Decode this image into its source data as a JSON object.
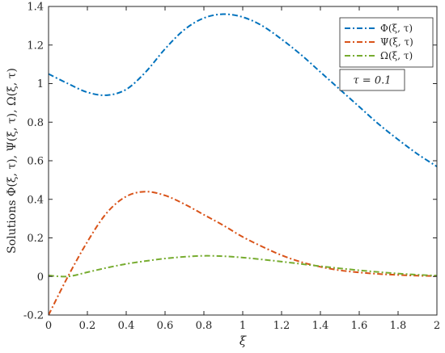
{
  "chart_data": {
    "type": "line",
    "title": "",
    "xlabel": "ξ",
    "ylabel": "Solutions Φ(ξ, τ), Ψ(ξ, τ), Ω(ξ, τ)",
    "xlim": [
      0,
      2
    ],
    "ylim": [
      -0.2,
      1.4
    ],
    "xticks": [
      0,
      0.2,
      0.4,
      0.6,
      0.8,
      1,
      1.2,
      1.4,
      1.6,
      1.8,
      2
    ],
    "xtick_labels": [
      "0",
      "0.2",
      "0.4",
      "0.6",
      "0.8",
      "1",
      "1.2",
      "1.4",
      "1.6",
      "1.8",
      "2"
    ],
    "yticks": [
      -0.2,
      0,
      0.2,
      0.4,
      0.6,
      0.8,
      1,
      1.2,
      1.4
    ],
    "ytick_labels": [
      "-0.2",
      "0",
      "0.2",
      "0.4",
      "0.6",
      "0.8",
      "1",
      "1.2",
      "1.4"
    ],
    "grid": false,
    "legend_position": "top-right",
    "annotation": "τ = 0.1",
    "x": [
      0,
      0.1,
      0.2,
      0.3,
      0.4,
      0.5,
      0.6,
      0.7,
      0.8,
      0.9,
      1.0,
      1.1,
      1.2,
      1.3,
      1.4,
      1.5,
      1.6,
      1.7,
      1.8,
      1.9,
      2.0
    ],
    "series": [
      {
        "name": "Φ(ξ, τ)",
        "color": "#0072BD",
        "values": [
          1.05,
          1.0,
          0.955,
          0.94,
          0.97,
          1.06,
          1.18,
          1.28,
          1.34,
          1.36,
          1.345,
          1.3,
          1.23,
          1.15,
          1.06,
          0.97,
          0.88,
          0.79,
          0.71,
          0.635,
          0.57
        ]
      },
      {
        "name": "Ψ(ξ, τ)",
        "color": "#D95319",
        "values": [
          -0.2,
          0.0,
          0.18,
          0.33,
          0.415,
          0.44,
          0.42,
          0.375,
          0.32,
          0.265,
          0.205,
          0.155,
          0.11,
          0.075,
          0.05,
          0.032,
          0.021,
          0.013,
          0.008,
          0.004,
          0.002
        ]
      },
      {
        "name": "Ω(ξ, τ)",
        "color": "#77AC30",
        "values": [
          0.005,
          0.0,
          0.022,
          0.045,
          0.065,
          0.08,
          0.093,
          0.102,
          0.107,
          0.105,
          0.098,
          0.088,
          0.077,
          0.065,
          0.053,
          0.042,
          0.032,
          0.023,
          0.015,
          0.009,
          0.004
        ]
      }
    ]
  }
}
